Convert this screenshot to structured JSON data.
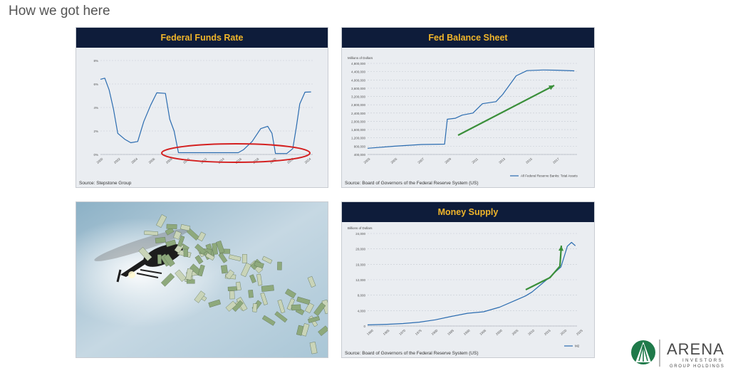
{
  "slide": {
    "title": "How we got here"
  },
  "colors": {
    "header_bg": "#0e1c3a",
    "header_text": "#f0b52a",
    "line": "#2b6cb0",
    "arrow": "#3a8f3a",
    "circle": "#d42020"
  },
  "panels": {
    "fed_funds": {
      "title": "Federal Funds Rate",
      "source": "Source:  Stepstone Group"
    },
    "balance": {
      "title": "Fed Balance Sheet",
      "source": "Source:  Board of Governors of the Federal Reserve System (US)",
      "unit": "Millions of Dollars",
      "legend": "All Federal Reserve Banks: Total Assets"
    },
    "money": {
      "title": "Money Supply",
      "source": "Source:  Board of Governors of the Federal Reserve System (US)",
      "unit": "Billions of Dollars",
      "legend": "M2"
    }
  },
  "logo": {
    "name": "ARENA",
    "line1": "INVESTORS",
    "line2": "GROUP HOLDINGS"
  },
  "chart_data": [
    {
      "type": "line",
      "title": "Federal Funds Rate",
      "ylabel": "",
      "yticks": [
        "0%",
        "2%",
        "4%",
        "6%",
        "8%"
      ],
      "ylim": [
        0,
        8
      ],
      "xticks": [
        "2000",
        "2002",
        "2004",
        "2006",
        "2008",
        "2010",
        "2012",
        "2014",
        "2016",
        "2018",
        "2020",
        "2022",
        "2024"
      ],
      "xlim": [
        2000,
        2024.5
      ],
      "x": [
        2000.0,
        2000.5,
        2001.0,
        2001.5,
        2002.0,
        2002.8,
        2003.5,
        2004.3,
        2005.0,
        2005.8,
        2006.5,
        2007.5,
        2008.0,
        2008.5,
        2009.0,
        2015.9,
        2016.5,
        2017.5,
        2018.5,
        2019.3,
        2019.8,
        2020.2,
        2021.5,
        2022.2,
        2022.6,
        2023.0,
        2023.6,
        2024.3
      ],
      "y": [
        6.4,
        6.5,
        5.5,
        3.9,
        1.8,
        1.3,
        1.0,
        1.1,
        2.8,
        4.2,
        5.25,
        5.2,
        3.0,
        2.0,
        0.15,
        0.15,
        0.4,
        1.1,
        2.2,
        2.4,
        1.8,
        0.08,
        0.08,
        0.5,
        2.3,
        4.3,
        5.3,
        5.33
      ]
    },
    {
      "type": "line",
      "title": "Fed Balance Sheet",
      "ylabel": "Millions of Dollars",
      "yticks": [
        "400,000",
        "800,000",
        "1,200,000",
        "1,600,000",
        "2,000,000",
        "2,400,000",
        "2,800,000",
        "3,200,000",
        "3,600,000",
        "4,000,000",
        "4,400,000",
        "4,800,000"
      ],
      "ylim": [
        400000,
        4800000
      ],
      "xticks": [
        "2003",
        "2005",
        "2007",
        "2009",
        "2011",
        "2013",
        "2015",
        "2017"
      ],
      "xlim": [
        2003,
        2018.5
      ],
      "x": [
        2003.0,
        2005.0,
        2007.0,
        2008.7,
        2008.9,
        2009.5,
        2010.0,
        2010.8,
        2011.5,
        2012.5,
        2013.0,
        2014.0,
        2014.8,
        2016.0,
        2017.0,
        2018.3
      ],
      "y": [
        700000,
        800000,
        880000,
        900000,
        2100000,
        2150000,
        2300000,
        2400000,
        2850000,
        2950000,
        3300000,
        4200000,
        4450000,
        4480000,
        4470000,
        4440000
      ],
      "legend": "All Federal Reserve Banks: Total Assets"
    },
    {
      "type": "line",
      "title": "Money Supply",
      "ylabel": "Billions of Dollars",
      "yticks": [
        "0",
        "4,000",
        "8,000",
        "12,000",
        "16,000",
        "20,000",
        "24,000"
      ],
      "ylim": [
        0,
        24000
      ],
      "xticks": [
        "1960",
        "1965",
        "1970",
        "1975",
        "1980",
        "1985",
        "1990",
        "1995",
        "2000",
        "2005",
        "2010",
        "2015",
        "2020",
        "2025"
      ],
      "xlim": [
        1959,
        2024
      ],
      "x": [
        1959,
        1965,
        1970,
        1975,
        1980,
        1985,
        1990,
        1995,
        2000,
        2005,
        2008,
        2010,
        2013,
        2015,
        2017,
        2019,
        2020.2,
        2021,
        2022.3,
        2023.5
      ],
      "y": [
        300,
        450,
        650,
        1000,
        1600,
        2500,
        3300,
        3700,
        4900,
        6700,
        7800,
        8800,
        10900,
        12300,
        13800,
        15300,
        18500,
        20700,
        21700,
        20800
      ],
      "legend": "M2"
    }
  ]
}
